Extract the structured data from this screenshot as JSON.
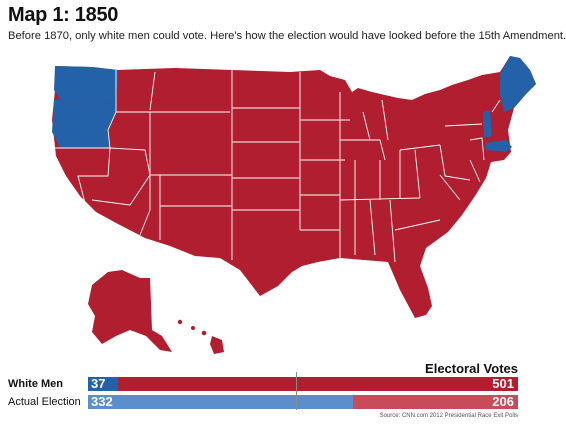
{
  "header": {
    "title": "Map 1: 1850",
    "subtitle": "Before 1870, only white men could vote. Here's how the election would have looked before the 15th Amendment."
  },
  "colors": {
    "red": "#b01e2f",
    "blue": "#2361a8",
    "light_red": "#c94a58",
    "light_blue": "#5a8fcb",
    "border": "#ffffff"
  },
  "map": {
    "states_blue": [
      "Washington",
      "Oregon",
      "Vermont",
      "Massachusetts",
      "Maine"
    ],
    "states_red": "all other states"
  },
  "electoral": {
    "title": "Electoral Votes",
    "total": 538,
    "rows": [
      {
        "label": "White Men",
        "blue": 37,
        "red": 501
      },
      {
        "label": "Actual Election",
        "blue": 332,
        "red": 206
      }
    ]
  },
  "source": "Source: CNN.com 2012 Presidential Race Exit Polls"
}
